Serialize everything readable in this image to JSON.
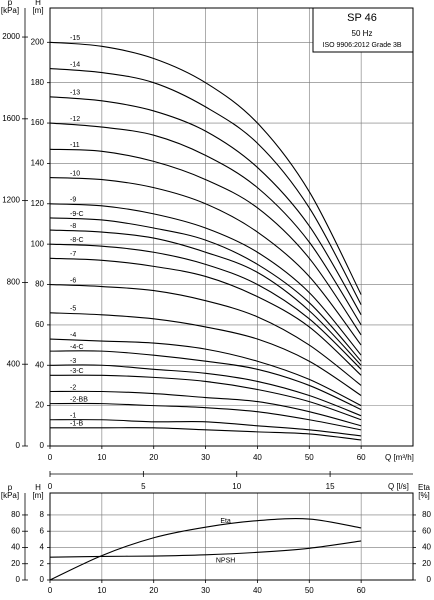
{
  "chart_data": [
    {
      "type": "line",
      "title": "SP 46",
      "subtitle": "50 Hz",
      "annotation": "ISO 9906:2012 Grade 3B",
      "p_label": "p",
      "p_unit": "[kPa]",
      "y_label": "H",
      "y_unit": "[m]",
      "x_label": "Q [m³/h]",
      "x2_label": "Q [l/s]",
      "x": [
        0,
        10,
        20,
        30,
        40,
        50,
        60
      ],
      "xlim": [
        0,
        70
      ],
      "xticks": [
        0,
        10,
        20,
        30,
        40,
        50,
        60
      ],
      "x2lim": [
        0,
        19.44
      ],
      "x2ticks": [
        0,
        5,
        10,
        15
      ],
      "ylim": [
        0,
        217
      ],
      "yticks": [
        0,
        20,
        40,
        60,
        80,
        100,
        120,
        140,
        160,
        180,
        200
      ],
      "plim": [
        0,
        2142
      ],
      "pticks": [
        0,
        400,
        800,
        1200,
        1600,
        2000
      ],
      "grid": true,
      "series": [
        {
          "name": "-15",
          "color": "#000000",
          "values": [
            200,
            198,
            192,
            180,
            160,
            126,
            75
          ]
        },
        {
          "name": "-14",
          "color": "#000000",
          "values": [
            187,
            185,
            180,
            168,
            150,
            118,
            70
          ]
        },
        {
          "name": "-13",
          "color": "#000000",
          "values": [
            173,
            171,
            166,
            156,
            138,
            109,
            65
          ]
        },
        {
          "name": "-12",
          "color": "#000000",
          "values": [
            160,
            158,
            154,
            144,
            128,
            101,
            60
          ]
        },
        {
          "name": "-11",
          "color": "#000000",
          "values": [
            147,
            146,
            141,
            132,
            118,
            93,
            55
          ]
        },
        {
          "name": "-10",
          "color": "#000000",
          "values": [
            133,
            132,
            128,
            120,
            106,
            84,
            50
          ]
        },
        {
          "name": "-9",
          "color": "#000000",
          "values": [
            120,
            119,
            115,
            108,
            96,
            76,
            45
          ]
        },
        {
          "name": "-9-C",
          "color": "#000000",
          "values": [
            113,
            112,
            108,
            102,
            90,
            71,
            42
          ]
        },
        {
          "name": "-8",
          "color": "#000000",
          "values": [
            107,
            106,
            103,
            96,
            86,
            67,
            40
          ]
        },
        {
          "name": "-8-C",
          "color": "#000000",
          "values": [
            100,
            99,
            96,
            90,
            80,
            63,
            38
          ]
        },
        {
          "name": "-7",
          "color": "#000000",
          "values": [
            93,
            92,
            89,
            84,
            74,
            59,
            35
          ]
        },
        {
          "name": "-6",
          "color": "#000000",
          "values": [
            80,
            79,
            77,
            72,
            64,
            50,
            30
          ]
        },
        {
          "name": "-5",
          "color": "#000000",
          "values": [
            66,
            65,
            63,
            59,
            53,
            42,
            25
          ]
        },
        {
          "name": "-4",
          "color": "#000000",
          "values": [
            53,
            52,
            51,
            48,
            42,
            33,
            20
          ]
        },
        {
          "name": "-4-C",
          "color": "#000000",
          "values": [
            47,
            47,
            45,
            42,
            38,
            30,
            18
          ]
        },
        {
          "name": "-3",
          "color": "#000000",
          "values": [
            40,
            40,
            38,
            36,
            32,
            25,
            15
          ]
        },
        {
          "name": "-3-C",
          "color": "#000000",
          "values": [
            35,
            35,
            34,
            32,
            28,
            22,
            13
          ]
        },
        {
          "name": "-2",
          "color": "#000000",
          "values": [
            27,
            27,
            26,
            24,
            22,
            17,
            10
          ]
        },
        {
          "name": "-2-BB",
          "color": "#000000",
          "values": [
            21,
            21,
            20,
            19,
            17,
            13,
            8
          ]
        },
        {
          "name": "-1",
          "color": "#000000",
          "values": [
            13,
            13,
            12,
            12,
            10,
            8,
            5
          ]
        },
        {
          "name": "-1-B",
          "color": "#000000",
          "values": [
            9,
            9,
            9,
            8,
            7,
            6,
            3
          ]
        }
      ]
    },
    {
      "type": "line",
      "p_label": "p",
      "p_unit": "[kPa]",
      "y_label": "H",
      "y_unit": "[m]",
      "y2_label": "Eta",
      "y2_unit": "[%]",
      "x": [
        0,
        10,
        20,
        30,
        40,
        50,
        60
      ],
      "xlim": [
        0,
        70
      ],
      "xticks": [
        0,
        10,
        20,
        30,
        40,
        50,
        60
      ],
      "ylim": [
        0,
        10.7
      ],
      "yticks": [
        0,
        2,
        4,
        6,
        8
      ],
      "y2lim": [
        0,
        107
      ],
      "y2ticks": [
        0,
        20,
        40,
        60,
        80
      ],
      "plim": [
        0,
        107
      ],
      "pticks": [
        0,
        20,
        40,
        60,
        80
      ],
      "grid": true,
      "series": [
        {
          "name": "Eta",
          "color": "#000000",
          "axis": "y2",
          "values": [
            0,
            30,
            52,
            65,
            73,
            75,
            64
          ]
        },
        {
          "name": "NPSH",
          "color": "#000000",
          "axis": "y",
          "values": [
            2.8,
            2.9,
            2.95,
            3.1,
            3.4,
            3.9,
            4.8
          ]
        }
      ]
    }
  ]
}
